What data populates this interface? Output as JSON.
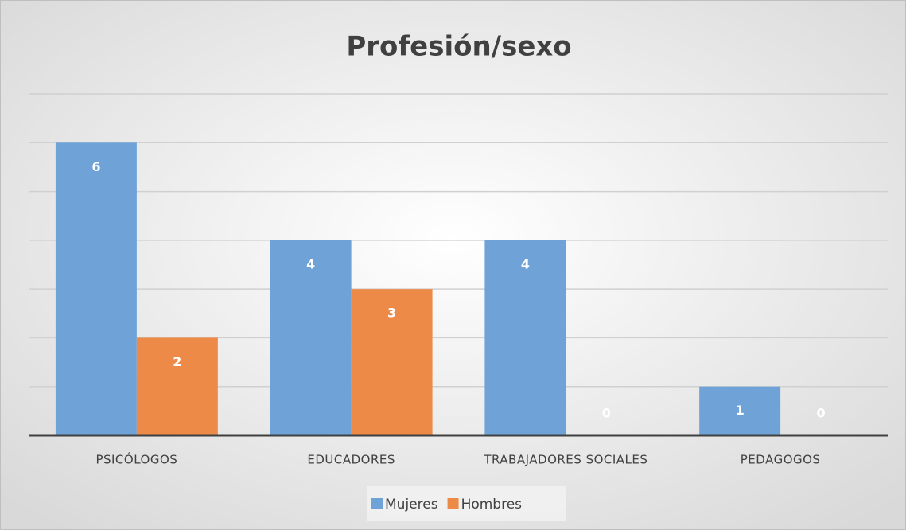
{
  "chart_data": {
    "type": "bar",
    "title": "Profesión/sexo",
    "categories": [
      "PSICÓLOGOS",
      "EDUCADORES",
      "TRABAJADORES SOCIALES",
      "PEDAGOGOS"
    ],
    "series": [
      {
        "name": "Mujeres",
        "color": "#6fa3d8",
        "values": [
          6,
          4,
          4,
          1
        ]
      },
      {
        "name": "Hombres",
        "color": "#ed8a47",
        "values": [
          2,
          3,
          0,
          0
        ]
      }
    ],
    "ylim": [
      0,
      7
    ],
    "yticks": [
      0,
      1,
      2,
      3,
      4,
      5,
      6,
      7
    ],
    "grid": true,
    "show_tick_labels": false,
    "legend": "bottom"
  }
}
